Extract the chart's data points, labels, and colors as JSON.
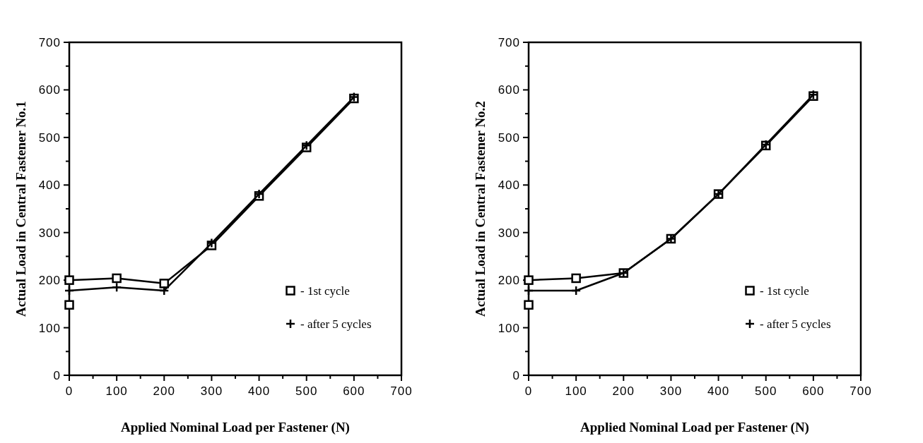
{
  "chart_data": [
    {
      "type": "line",
      "xlabel": "Applied Nominal Load per Fastener  (N)",
      "ylabel": "Actual Load in Central Fastener No.1",
      "xlim": [
        0,
        700
      ],
      "ylim": [
        0,
        700
      ],
      "xticks": [
        0,
        {
          "value": 50,
          "label": null
        },
        100,
        {
          "value": 150,
          "label": null
        },
        200,
        {
          "value": 250,
          "label": null
        },
        300,
        {
          "value": 350,
          "label": null
        },
        400,
        {
          "value": 450,
          "label": null
        },
        500,
        {
          "value": 550,
          "label": null
        },
        600,
        {
          "value": 650,
          "label": null
        },
        700
      ],
      "yticks": [
        0,
        {
          "value": 50,
          "label": null
        },
        100,
        {
          "value": 150,
          "label": null
        },
        200,
        {
          "value": 250,
          "label": null
        },
        300,
        {
          "value": 350,
          "label": null
        },
        400,
        {
          "value": 450,
          "label": null
        },
        500,
        {
          "value": 550,
          "label": null
        },
        600,
        {
          "value": 650,
          "label": null
        },
        700
      ],
      "legend": "bottom right",
      "grid": false,
      "series": [
        {
          "name": "- 1st cycle",
          "color": "#000000",
          "marker": "square",
          "x": [
            0,
            100,
            200,
            300,
            400,
            500,
            600
          ],
          "values": [
            200,
            204,
            193,
            273,
            377,
            479,
            582
          ]
        },
        {
          "name": "- after 5 cycles",
          "color": "#000000",
          "marker": "cross",
          "x": [
            0,
            100,
            200,
            300,
            400,
            500,
            600
          ],
          "values": [
            178,
            185,
            178,
            278,
            381,
            483,
            585
          ]
        },
        {
          "type": "scatter",
          "color": "#000000",
          "marker": "square",
          "x": [
            0
          ],
          "values": [
            148
          ]
        }
      ]
    },
    {
      "type": "line",
      "xlabel": "Applied Nominal Load per Fastener (N)",
      "ylabel": "Actual Load in Central Fastener  No.2",
      "xlim": [
        0,
        700
      ],
      "ylim": [
        0,
        700
      ],
      "xticks": [
        0,
        {
          "value": 50,
          "label": null
        },
        100,
        {
          "value": 150,
          "label": null
        },
        200,
        {
          "value": 250,
          "label": null
        },
        300,
        {
          "value": 350,
          "label": null
        },
        400,
        {
          "value": 450,
          "label": null
        },
        500,
        {
          "value": 550,
          "label": null
        },
        600,
        {
          "value": 650,
          "label": null
        },
        700
      ],
      "yticks": [
        0,
        {
          "value": 50,
          "label": null
        },
        100,
        {
          "value": 150,
          "label": null
        },
        200,
        {
          "value": 250,
          "label": null
        },
        300,
        {
          "value": 350,
          "label": null
        },
        400,
        {
          "value": 450,
          "label": null
        },
        500,
        {
          "value": 550,
          "label": null
        },
        600,
        {
          "value": 650,
          "label": null
        },
        700
      ],
      "legend": "bottom right",
      "grid": false,
      "series": [
        {
          "name": "- 1st cycle",
          "color": "#000000",
          "marker": "square",
          "x": [
            0,
            100,
            200,
            300,
            400,
            500,
            600
          ],
          "values": [
            200,
            204,
            215,
            287,
            381,
            483,
            587
          ]
        },
        {
          "name": "- after 5 cycles",
          "color": "#000000",
          "marker": "cross",
          "x": [
            0,
            100,
            200,
            300,
            400,
            500,
            600
          ],
          "values": [
            178,
            178,
            215,
            287,
            381,
            485,
            590
          ]
        },
        {
          "type": "scatter",
          "color": "#000000",
          "marker": "square",
          "x": [
            0
          ],
          "values": [
            148
          ]
        }
      ]
    }
  ]
}
